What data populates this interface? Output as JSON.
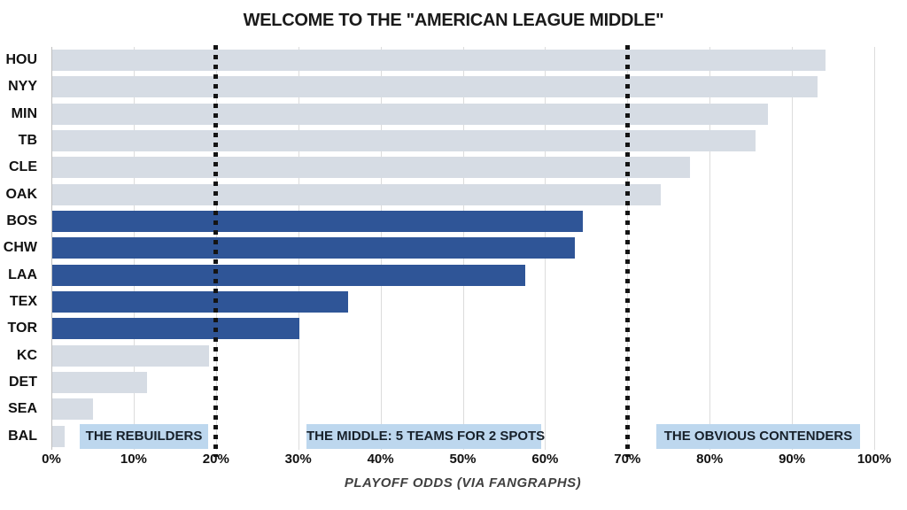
{
  "title": "WELCOME TO THE \"AMERICAN LEAGUE MIDDLE\"",
  "chart_data": {
    "type": "bar",
    "orientation": "horizontal",
    "title": "WELCOME TO THE \"AMERICAN LEAGUE MIDDLE\"",
    "xlabel": "PLAYOFF ODDS (VIA FANGRAPHS)",
    "ylabel": "",
    "xlim": [
      0,
      100
    ],
    "grid": "vertical-every-10pct",
    "categories": [
      "HOU",
      "NYY",
      "MIN",
      "TB",
      "CLE",
      "OAK",
      "BOS",
      "CHW",
      "LAA",
      "TEX",
      "TOR",
      "KC",
      "DET",
      "SEA",
      "BAL"
    ],
    "values": [
      94,
      93,
      87,
      85.5,
      77.5,
      74,
      64.5,
      63.5,
      57.5,
      36,
      30,
      19,
      11.5,
      5,
      1.5
    ],
    "highlighted_categories": [
      "BOS",
      "CHW",
      "LAA",
      "TEX",
      "TOR"
    ],
    "x_ticks": [
      "0%",
      "10%",
      "20%",
      "30%",
      "40%",
      "50%",
      "60%",
      "70%",
      "80%",
      "90%",
      "100%"
    ],
    "reference_lines_pct": [
      20,
      70
    ],
    "annotations": [
      {
        "label": "THE REBUILDERS",
        "x_start_pct": 3.4,
        "x_end_pct": 19.1
      },
      {
        "label": "THE MIDDLE: 5 TEAMS FOR 2 SPOTS",
        "x_start_pct": 31.0,
        "x_end_pct": 59.5
      },
      {
        "label": "THE OBVIOUS CONTENDERS",
        "x_start_pct": 73.5,
        "x_end_pct": 98.3
      }
    ],
    "colors": {
      "bar_default": "#d6dce4",
      "bar_highlight": "#2f5597",
      "annotation_bg": "#bdd7ee",
      "gridline": "#dcdcdc",
      "reference_line": "#141414",
      "text": "#111111"
    }
  }
}
